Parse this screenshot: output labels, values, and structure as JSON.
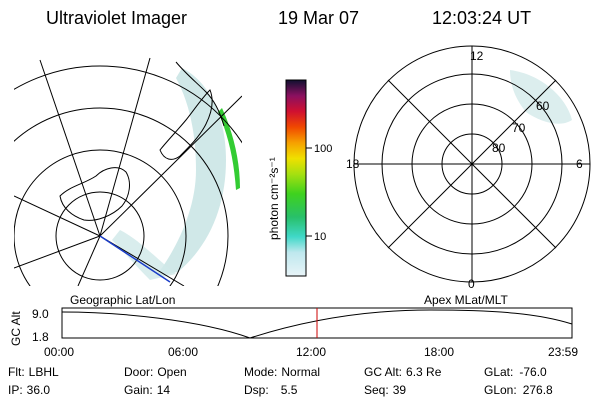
{
  "header": {
    "instrument": "Ultraviolet Imager",
    "date": "19 Mar 07",
    "time": "12:03:24 UT"
  },
  "colorbar": {
    "label": "photon cm⁻²s⁻¹",
    "ticks": [
      "100",
      "10"
    ]
  },
  "polar": {
    "mlt_labels": [
      "12",
      "18",
      "6",
      "0"
    ],
    "lat_labels": [
      "60",
      "70",
      "80"
    ]
  },
  "timeline": {
    "left_title": "Geographic Lat/Lon",
    "right_title": "Apex MLat/MLT",
    "axis_label": "GC Alt",
    "y_ticks": [
      "9.0",
      "1.8"
    ],
    "x_ticks": [
      "00:00",
      "06:00",
      "12:00",
      "18:00",
      "23:59"
    ],
    "marker_time": "12:03"
  },
  "status": {
    "row1": [
      {
        "label": "Flt:",
        "value": "LBHL"
      },
      {
        "label": "Door:",
        "value": "Open"
      },
      {
        "label": "Mode:",
        "value": "Normal"
      },
      {
        "label": "GC Alt:",
        "value": "6.3 Re"
      },
      {
        "label": "GLat:",
        "value": "-76.0"
      }
    ],
    "row2": [
      {
        "label": "IP:",
        "value": "36.0"
      },
      {
        "label": "Gain:",
        "value": "14"
      },
      {
        "label": "Dsp:",
        "value": "5.5"
      },
      {
        "label": "Seq:",
        "value": "39"
      },
      {
        "label": "GLon:",
        "value": "276.8"
      }
    ]
  },
  "colors": {
    "marker": "#cc0000",
    "aurora_bright": "#33cc33",
    "aurora_dim": "#b9dcdc"
  }
}
